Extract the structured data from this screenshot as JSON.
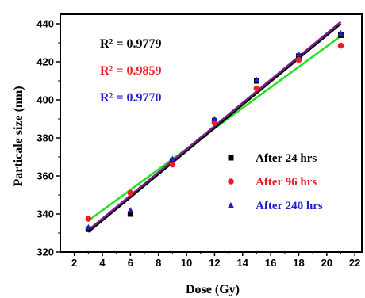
{
  "chart_data": {
    "type": "scatter",
    "xlabel": "Dose (Gy)",
    "ylabel": "Particale size (nm)",
    "xlim": [
      1,
      22.5
    ],
    "ylim": [
      320,
      445
    ],
    "xticks": [
      2,
      4,
      6,
      8,
      10,
      12,
      14,
      16,
      18,
      20,
      22
    ],
    "yticks": [
      320,
      340,
      360,
      380,
      400,
      420,
      440
    ],
    "grid": false,
    "legend_position": "right",
    "annotations": [
      {
        "text": "R² = 0.9779",
        "color": "#000000"
      },
      {
        "text": "R² = 0.9859",
        "color": "#ee1c25"
      },
      {
        "text": "R² = 0.9770",
        "color": "#1f1fd2"
      }
    ],
    "series": [
      {
        "name": "After 24 hrs",
        "marker": "square",
        "color": "#000000",
        "x": [
          3,
          6,
          9,
          12,
          15,
          18,
          21
        ],
        "y": [
          332,
          340,
          368,
          389,
          410,
          423,
          434
        ],
        "fit": {
          "x": [
            3,
            21
          ],
          "y": [
            330.5,
            440
          ],
          "color": "#000000"
        }
      },
      {
        "name": "After 96 hrs",
        "marker": "circle",
        "color": "#ee1c25",
        "x": [
          3,
          6,
          9,
          12,
          15,
          18,
          21
        ],
        "y": [
          337.5,
          351,
          366,
          388,
          406,
          421,
          428.5
        ],
        "fit": {
          "x": [
            3,
            21
          ],
          "y": [
            336.5,
            433.5
          ],
          "color": "#22e022"
        }
      },
      {
        "name": "After 240 hrs",
        "marker": "triangle",
        "color": "#1f1fd2",
        "x": [
          3,
          6,
          9,
          12,
          15,
          18,
          21
        ],
        "y": [
          333,
          342,
          369,
          390,
          410.5,
          424,
          435
        ],
        "fit": {
          "x": [
            3,
            21
          ],
          "y": [
            331.5,
            441
          ],
          "color": "#7a1f8c"
        }
      }
    ]
  }
}
